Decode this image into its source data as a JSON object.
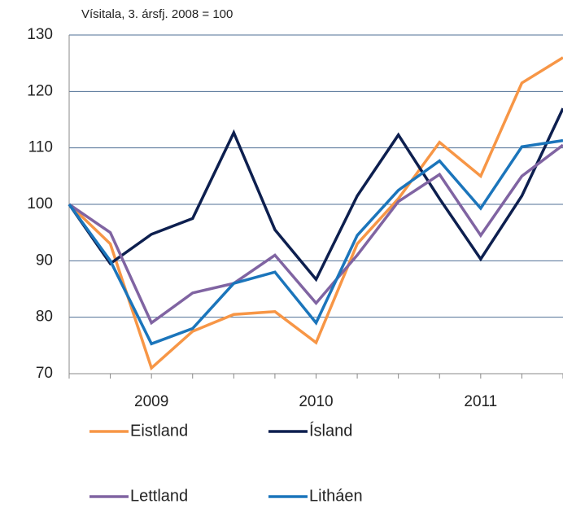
{
  "chart_data": {
    "type": "line",
    "title": "Vísitala, 3. ársfj. 2008 = 100",
    "categories": [
      null,
      null,
      "2009",
      null,
      null,
      null,
      "2010",
      null,
      null,
      null,
      "2011",
      null,
      null
    ],
    "series": [
      {
        "name": "Eistland",
        "color": "#f79646",
        "values": [
          100,
          93,
          71,
          77.5,
          80.5,
          81,
          75.5,
          93,
          101,
          111,
          105,
          121.5,
          126
        ]
      },
      {
        "name": "Ísland",
        "color": "#0d1f4f",
        "values": [
          100,
          89.5,
          94.7,
          97.5,
          112.7,
          95.5,
          86.7,
          101.5,
          112.3,
          101,
          90.3,
          101.5,
          117
        ]
      },
      {
        "name": "Lettland",
        "color": "#8064a2",
        "values": [
          100,
          95,
          79,
          84.3,
          86,
          91,
          82.5,
          91,
          100.5,
          105.3,
          94.5,
          105,
          110.5
        ]
      },
      {
        "name": "Litháen",
        "color": "#1b75bb",
        "values": [
          100,
          90,
          75.3,
          78,
          86,
          88,
          79,
          94.5,
          102.5,
          107.7,
          99.3,
          110.2,
          111.3
        ]
      }
    ],
    "ylim": [
      70,
      130
    ],
    "yticks": [
      70,
      80,
      90,
      100,
      110,
      120,
      130
    ],
    "grid": true
  }
}
